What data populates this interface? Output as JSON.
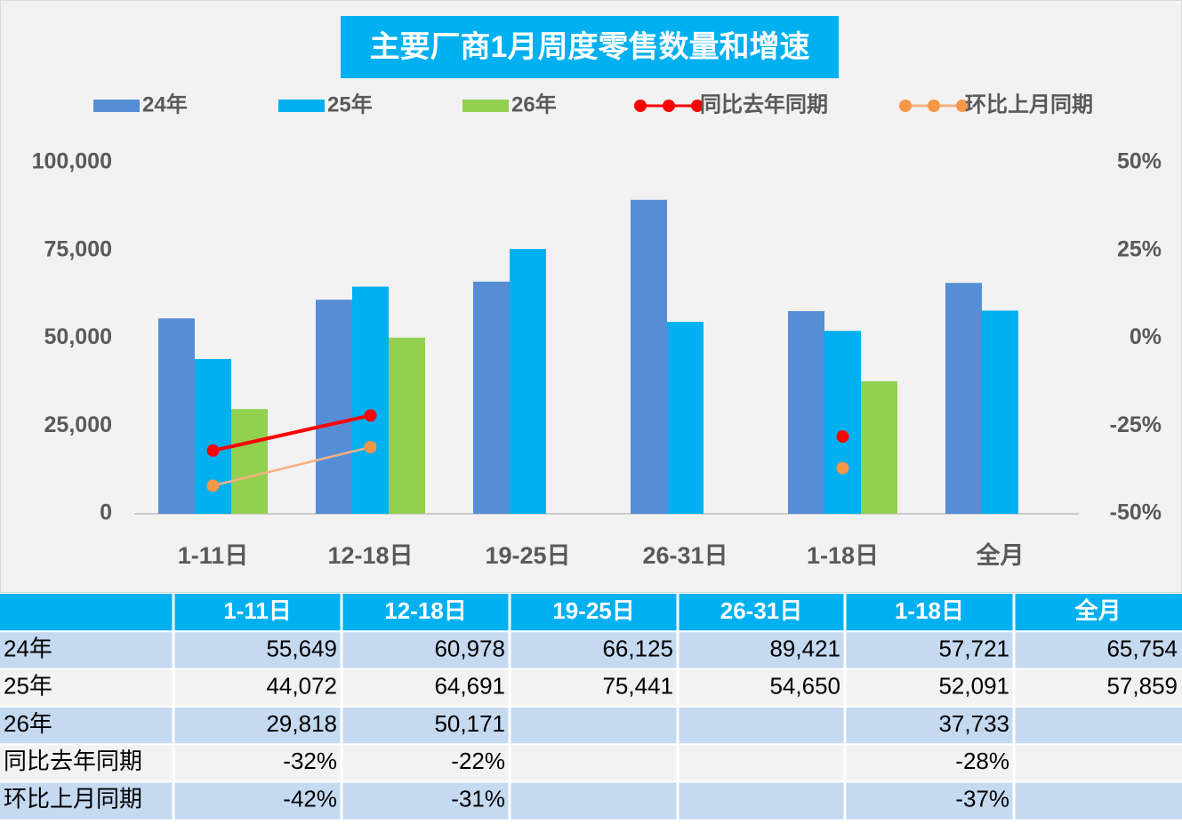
{
  "chart_data": {
    "type": "bar",
    "title": "主要厂商1月周度零售数量和增速",
    "categories": [
      "1-11日",
      "12-18日",
      "19-25日",
      "26-31日",
      "1-18日",
      "全月"
    ],
    "series": [
      {
        "name": "24年",
        "color": "#558ed5",
        "values": [
          55649,
          60978,
          66125,
          89421,
          57721,
          65754
        ]
      },
      {
        "name": "25年",
        "color": "#00b0f0",
        "values": [
          44072,
          64691,
          75441,
          54650,
          52091,
          57859
        ]
      },
      {
        "name": "26年",
        "color": "#92d050",
        "values": [
          29818,
          50171,
          null,
          null,
          37733,
          null
        ]
      },
      {
        "name": "同比去年同期",
        "type": "line",
        "axis": "y2",
        "color": "#ff0000",
        "values": [
          -32,
          -22,
          null,
          null,
          -28,
          null
        ]
      },
      {
        "name": "环比上月同期",
        "type": "line",
        "axis": "y2",
        "color": "#f4b183",
        "marker_color": "#f79646",
        "values": [
          -42,
          -31,
          null,
          null,
          -37,
          null
        ]
      }
    ],
    "ylim": [
      0,
      100000
    ],
    "yticks": [
      0,
      {
        "value": 25000,
        "label": "25,000"
      },
      {
        "value": 50000,
        "label": "50,000"
      },
      {
        "value": 75000,
        "label": "75,000"
      },
      {
        "value": 100000,
        "label": "100,000"
      }
    ],
    "y2lim": [
      -50,
      50
    ],
    "y2ticks": [
      {
        "value": -50,
        "label": "-50%"
      },
      {
        "value": -25,
        "label": "-25%"
      },
      {
        "value": 0,
        "label": "0%"
      },
      {
        "value": 25,
        "label": "25%"
      },
      {
        "value": 50,
        "label": "50%"
      }
    ],
    "legend": "top"
  },
  "table": {
    "header": [
      "1-11日",
      "12-18日",
      "19-25日",
      "26-31日",
      "1-18日",
      "全月"
    ],
    "rows": [
      [
        "24年",
        "55,649",
        "60,978",
        "66,125",
        "89,421",
        "57,721",
        "65,754"
      ],
      [
        "25年",
        "44,072",
        "64,691",
        "75,441",
        "54,650",
        "52,091",
        "57,859"
      ],
      [
        "26年",
        "29,818",
        "50,171",
        null,
        null,
        "37,733",
        null
      ],
      [
        "同比去年同期",
        "-32%",
        "-22%",
        null,
        null,
        "-28%",
        null
      ],
      [
        "环比上月同期",
        "-42%",
        "-31%",
        null,
        null,
        "-37%",
        null
      ]
    ]
  }
}
